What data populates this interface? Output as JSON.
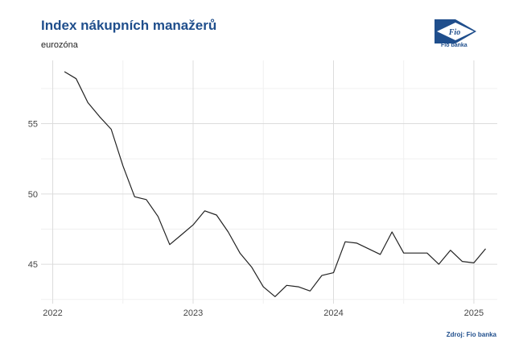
{
  "header": {
    "title": "Index nákupních manažerů",
    "subtitle": "eurozóna"
  },
  "logo": {
    "icon": "fio-flag-icon",
    "mark": "Fio",
    "caption": "Fio banka",
    "color": "#1f4e8c"
  },
  "footer": {
    "source": "Zdroj: Fio banka"
  },
  "chart_data": {
    "type": "line",
    "title": "Index nákupních manažerů",
    "subtitle": "eurozóna",
    "xlabel": "",
    "ylabel": "",
    "x_ticks": [
      "2022",
      "2023",
      "2024",
      "2025"
    ],
    "y_ticks": [
      45,
      50,
      55
    ],
    "ylim": [
      42.2,
      59.5
    ],
    "xlim": [
      "2021-12",
      "2025-03"
    ],
    "grid": true,
    "legend": "none",
    "line_color": "#222222",
    "series": [
      {
        "x": [
          "2022-02",
          "2022-03",
          "2022-04",
          "2022-05",
          "2022-06",
          "2022-07",
          "2022-08",
          "2022-09",
          "2022-10",
          "2022-11",
          "2022-12",
          "2023-01",
          "2023-02",
          "2023-03",
          "2023-04",
          "2023-05",
          "2023-06",
          "2023-07",
          "2023-08",
          "2023-09",
          "2023-10",
          "2023-11",
          "2023-12",
          "2024-01",
          "2024-02",
          "2024-03",
          "2024-04",
          "2024-05",
          "2024-06",
          "2024-07",
          "2024-08",
          "2024-09",
          "2024-10",
          "2024-11",
          "2024-12",
          "2025-01",
          "2025-02"
        ],
        "values": [
          58.7,
          58.2,
          56.5,
          55.5,
          54.6,
          52.0,
          49.8,
          49.6,
          48.4,
          46.4,
          47.1,
          47.8,
          48.8,
          48.5,
          47.3,
          45.8,
          44.8,
          43.4,
          42.7,
          43.5,
          43.4,
          43.1,
          44.2,
          44.4,
          46.6,
          46.5,
          46.1,
          45.7,
          47.3,
          45.8,
          45.8,
          45.8,
          45.0,
          46.0,
          45.2,
          45.1,
          46.1
        ]
      }
    ]
  }
}
